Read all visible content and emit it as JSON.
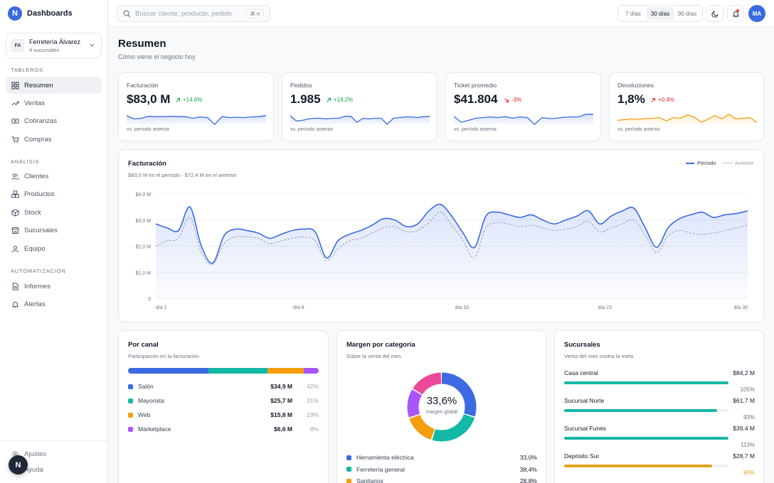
{
  "app": {
    "title": "Dashboards",
    "logo_letter": "N"
  },
  "org": {
    "initials": "FA",
    "name": "Ferretería Álvarez",
    "sub": "4 sucursales"
  },
  "sidebar": {
    "sections": [
      "TABLEROS",
      "ANÁLISIS",
      "AUTOMATIZACIÓN"
    ],
    "items": [
      {
        "label": "Resumen",
        "icon": "grid-icon",
        "active": true
      },
      {
        "label": "Ventas",
        "icon": "trend-icon"
      },
      {
        "label": "Cobranzas",
        "icon": "cash-icon"
      },
      {
        "label": "Compras",
        "icon": "cart-icon"
      },
      {
        "label": "Clientes",
        "icon": "users-icon"
      },
      {
        "label": "Productos",
        "icon": "boxes-icon"
      },
      {
        "label": "Stock",
        "icon": "package-icon"
      },
      {
        "label": "Sucursales",
        "icon": "store-icon"
      },
      {
        "label": "Equipo",
        "icon": "user-icon"
      },
      {
        "label": "Informes",
        "icon": "file-icon"
      },
      {
        "label": "Alertas",
        "icon": "bell-icon"
      }
    ],
    "footer": [
      {
        "label": "Ajustes",
        "icon": "gear-icon"
      },
      {
        "label": "Ayuda",
        "icon": "help-icon"
      }
    ],
    "help_bubble": "N"
  },
  "topbar": {
    "search_placeholder": "Buscar cliente, producto, pedido",
    "search_shortcut": "⌘ K",
    "ranges": [
      "7 días",
      "30 días",
      "90 días"
    ],
    "active_range": "30 días",
    "user_initials": "MA"
  },
  "page": {
    "title": "Resumen",
    "subtitle": "Cómo viene el negocio hoy"
  },
  "colors": {
    "accent": "#3b6be0",
    "up": "#16a34a",
    "down": "#dc2626",
    "teal": "#14b8a6",
    "amber": "#f59e0b",
    "purple": "#a855f7",
    "pink": "#ec4899"
  },
  "kpis": [
    {
      "label": "Facturación",
      "value": "$83,0 M",
      "delta": "+14.6%",
      "dir": "up",
      "foot": "vs. período anterior",
      "color": "#3b6be0",
      "spark": [
        0.7,
        0.45,
        0.5,
        0.65,
        0.62,
        0.62,
        0.65,
        0.62,
        0.62,
        0.5,
        0.6,
        0.55,
        0.05,
        0.62,
        0.55,
        0.58,
        0.55,
        0.6,
        0.62,
        0.7
      ]
    },
    {
      "label": "Pedidos",
      "value": "1.985",
      "delta": "+18.2%",
      "dir": "up",
      "foot": "vs. período anterior",
      "color": "#3b6be0",
      "spark": [
        0.7,
        0.3,
        0.35,
        0.45,
        0.5,
        0.5,
        0.45,
        0.5,
        0.5,
        0.65,
        0.65,
        0.2,
        0.5,
        0.45,
        0.5,
        0.5,
        0.05,
        0.5,
        0.55,
        0.6,
        0.6,
        0.55,
        0.62,
        0.65
      ]
    },
    {
      "label": "Ticket promedio",
      "value": "$41.804",
      "delta": "-3%",
      "dir": "down",
      "foot": "vs. período anterior",
      "color": "#3b6be0",
      "spark": [
        0.65,
        0.2,
        0.35,
        0.5,
        0.55,
        0.6,
        0.55,
        0.62,
        0.5,
        0.6,
        0.55,
        0.05,
        0.55,
        0.48,
        0.5,
        0.58,
        0.6,
        0.6,
        0.8,
        0.8
      ]
    },
    {
      "label": "Devoluciones",
      "value": "1,8%",
      "delta": "+0.4%",
      "dir": "up-bad",
      "foot": "vs. período anterior",
      "color": "#f59e0b",
      "spark": [
        0.35,
        0.4,
        0.45,
        0.42,
        0.48,
        0.5,
        0.55,
        0.3,
        0.55,
        0.5,
        0.75,
        0.6,
        0.2,
        0.45,
        0.7,
        0.45,
        0.8,
        0.45,
        0.5,
        0.55,
        0.2
      ]
    }
  ],
  "revenue": {
    "title": "Facturación",
    "subtitle": "$83,0 M en el período · $72,4 M en el anterior",
    "legend_current": "Período",
    "legend_previous": "Anterior"
  },
  "chart_data": {
    "type": "line",
    "title": "Facturación",
    "x_labels": [
      "día 1",
      "día 8",
      "día 16",
      "día 23",
      "día 30"
    ],
    "x_label_days": [
      1,
      8,
      16,
      23,
      30
    ],
    "y_ticks": [
      "0",
      "$1,0 M",
      "$2,0 M",
      "$3,0 M",
      "$4,0 M"
    ],
    "ylim": [
      0,
      4
    ],
    "series": [
      {
        "name": "Período",
        "values": [
          2.85,
          2.7,
          2.6,
          3.5,
          2.0,
          1.35,
          2.4,
          2.65,
          2.6,
          2.5,
          2.3,
          2.45,
          2.6,
          2.65,
          2.55,
          1.55,
          2.2,
          2.45,
          2.6,
          2.8,
          3.05,
          3.0,
          2.75,
          2.85,
          3.35,
          3.6,
          3.15,
          2.5,
          1.95,
          3.15,
          3.3,
          3.2,
          3.1,
          3.2,
          3.0,
          2.85,
          3.0,
          3.15,
          3.35,
          2.85,
          3.15,
          3.35,
          3.45,
          2.7,
          1.95,
          2.7,
          3.05,
          3.2,
          3.3,
          3.1,
          3.2,
          3.25,
          3.35
        ]
      },
      {
        "name": "Anterior",
        "values": [
          2.0,
          2.2,
          2.3,
          3.1,
          1.75,
          1.3,
          2.1,
          2.35,
          2.35,
          2.3,
          2.1,
          2.2,
          2.3,
          2.35,
          2.2,
          1.45,
          1.9,
          2.2,
          2.3,
          2.5,
          2.7,
          2.75,
          2.55,
          2.6,
          2.9,
          3.3,
          2.8,
          2.2,
          1.55,
          2.7,
          2.9,
          2.85,
          2.75,
          2.8,
          2.7,
          2.6,
          2.65,
          2.75,
          2.95,
          2.55,
          2.7,
          2.85,
          3.0,
          2.4,
          1.75,
          2.4,
          2.6,
          2.5,
          2.45,
          2.5,
          2.6,
          2.7,
          2.8
        ]
      }
    ],
    "grid": true
  },
  "channels": {
    "title": "Por canal",
    "subtitle": "Participación en la facturación",
    "items": [
      {
        "name": "Salón",
        "value": "$34,9 M",
        "pct": "42%",
        "share": 42,
        "color": "#3b6be0"
      },
      {
        "name": "Mayorista",
        "value": "$25,7 M",
        "pct": "31%",
        "share": 31,
        "color": "#14b8a6"
      },
      {
        "name": "Web",
        "value": "$15,8 M",
        "pct": "19%",
        "share": 19,
        "color": "#f59e0b"
      },
      {
        "name": "Marketplace",
        "value": "$6,6 M",
        "pct": "8%",
        "share": 8,
        "color": "#a855f7"
      }
    ]
  },
  "margin": {
    "title": "Margen por categoría",
    "subtitle": "Sobre la venta del mes",
    "center_value": "33,6%",
    "center_label": "margen global",
    "slices": [
      {
        "name": "Herramienta eléctrica",
        "value": "33,0%",
        "share": 30,
        "color": "#3b6be0"
      },
      {
        "name": "Ferretería general",
        "value": "38,4%",
        "share": 25,
        "color": "#14b8a6"
      },
      {
        "name": "Sanitarios",
        "value": "28,8%",
        "share": 15,
        "color": "#f59e0b"
      },
      {
        "name": "",
        "value": "",
        "share": 14,
        "color": "#a855f7"
      },
      {
        "name": "",
        "value": "",
        "share": 16,
        "color": "#ec4899"
      }
    ]
  },
  "branches": {
    "title": "Sucursales",
    "subtitle": "Venta del mes contra la meta",
    "items": [
      {
        "name": "Casa central",
        "value": "$84,2 M",
        "pct": "105%",
        "fill": 100,
        "color": "#14b8a6"
      },
      {
        "name": "Sucursal Norte",
        "value": "$61,7 M",
        "pct": "93%",
        "fill": 93,
        "color": "#14b8a6"
      },
      {
        "name": "Sucursal Funes",
        "value": "$39,4 M",
        "pct": "113%",
        "fill": 100,
        "color": "#14b8a6"
      },
      {
        "name": "Depósito Sur",
        "value": "$28,7 M",
        "pct": "90%",
        "fill": 90,
        "color": "#e0a419"
      }
    ]
  }
}
